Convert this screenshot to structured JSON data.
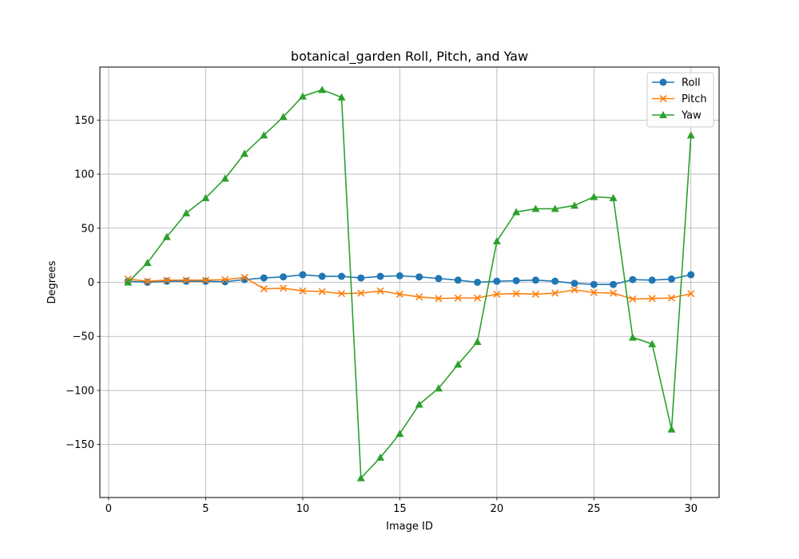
{
  "chart_data": {
    "type": "line",
    "title": "botanical_garden Roll, Pitch, and Yaw",
    "xlabel": "Image ID",
    "ylabel": "Degrees",
    "xlim": [
      -0.45,
      31.45
    ],
    "ylim": [
      -199,
      199
    ],
    "xticks": [
      0,
      5,
      10,
      15,
      20,
      25,
      30
    ],
    "yticks": [
      -150,
      -100,
      -50,
      0,
      50,
      100,
      150
    ],
    "xtick_labels": [
      "0",
      "5",
      "10",
      "15",
      "20",
      "25",
      "30"
    ],
    "ytick_labels": [
      "−150",
      "−100",
      "−50",
      "0",
      "50",
      "100",
      "150"
    ],
    "grid": true,
    "legend_position": "top-right",
    "x": [
      1,
      2,
      3,
      4,
      5,
      6,
      7,
      8,
      9,
      10,
      11,
      12,
      13,
      14,
      15,
      16,
      17,
      18,
      19,
      20,
      21,
      22,
      23,
      24,
      25,
      26,
      27,
      28,
      29,
      30
    ],
    "series": [
      {
        "name": "Roll",
        "color": "#1f77b4",
        "marker": "circle",
        "values": [
          1,
          0,
          1,
          1,
          1,
          0.5,
          2.5,
          4,
          5,
          7,
          5.5,
          5.5,
          4,
          5.5,
          6,
          5,
          3.5,
          2,
          0,
          1,
          1.5,
          2,
          1,
          -1,
          -2,
          -2,
          2.5,
          2,
          3,
          7
        ]
      },
      {
        "name": "Pitch",
        "color": "#ff7f0e",
        "marker": "x",
        "values": [
          3,
          1,
          2,
          2,
          2,
          2.5,
          4.5,
          -6,
          -5.5,
          -8,
          -8.5,
          -10.5,
          -10,
          -8,
          -11,
          -13.5,
          -15,
          -14.5,
          -14.5,
          -11,
          -10.5,
          -11,
          -10,
          -7,
          -9.5,
          -10,
          -15.5,
          -15,
          -14.5,
          -10.5
        ]
      },
      {
        "name": "Yaw",
        "color": "#2ca02c",
        "marker": "triangle",
        "values": [
          0,
          18,
          42,
          64,
          78,
          96,
          119,
          136,
          153,
          172,
          178,
          171,
          -181,
          -162,
          -140,
          -113,
          -98,
          -76,
          -55,
          38,
          65,
          68,
          68,
          71,
          79,
          78,
          -51,
          -57,
          -136,
          136
        ]
      }
    ]
  }
}
